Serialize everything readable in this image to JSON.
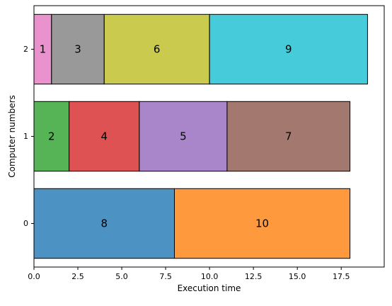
{
  "chart_data": {
    "type": "bar",
    "orientation": "horizontal-stacked",
    "title": "",
    "xlabel": "Execution time",
    "ylabel": "Computer numbers",
    "xlim": [
      0,
      19.95
    ],
    "ylim": [
      -0.5,
      2.5
    ],
    "x_ticks": [
      0.0,
      2.5,
      5.0,
      7.5,
      10.0,
      12.5,
      15.0,
      17.5
    ],
    "x_tick_labels": [
      "0.0",
      "2.5",
      "5.0",
      "7.5",
      "10.0",
      "12.5",
      "15.0",
      "17.5"
    ],
    "y_ticks": [
      0,
      1,
      2
    ],
    "y_tick_labels": [
      "0",
      "1",
      "2"
    ],
    "grid": false,
    "legend": "none",
    "rows": [
      {
        "y": 0,
        "segments": [
          {
            "label": "8",
            "start": 0,
            "end": 8,
            "color": "#1f77b4"
          },
          {
            "label": "10",
            "start": 8,
            "end": 18,
            "color": "#ff7f0e"
          }
        ]
      },
      {
        "y": 1,
        "segments": [
          {
            "label": "2",
            "start": 0,
            "end": 2,
            "color": "#2ca02c"
          },
          {
            "label": "4",
            "start": 2,
            "end": 6,
            "color": "#d62728"
          },
          {
            "label": "5",
            "start": 6,
            "end": 11,
            "color": "#9467bd"
          },
          {
            "label": "7",
            "start": 11,
            "end": 18,
            "color": "#8c564b"
          }
        ]
      },
      {
        "y": 2,
        "segments": [
          {
            "label": "1",
            "start": 0,
            "end": 1,
            "color": "#e377c2"
          },
          {
            "label": "3",
            "start": 1,
            "end": 4,
            "color": "#7f7f7f"
          },
          {
            "label": "6",
            "start": 4,
            "end": 10,
            "color": "#bcbd22"
          },
          {
            "label": "9",
            "start": 10,
            "end": 19,
            "color": "#17becf"
          }
        ]
      }
    ]
  }
}
